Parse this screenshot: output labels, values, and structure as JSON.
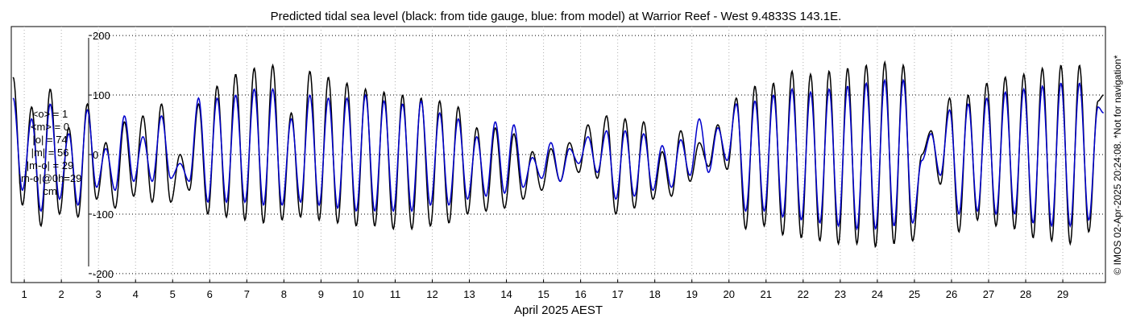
{
  "chart_data": {
    "type": "line",
    "title": "Predicted tidal sea level (black: from tide gauge, blue: from model) at Warrior Reef - West 9.4833S 143.1E.",
    "xlabel": "April 2025 AEST",
    "ylabel": "",
    "x_range": [
      0.65,
      30.15
    ],
    "ylim": [
      -215,
      215
    ],
    "x_ticks": [
      1,
      2,
      3,
      4,
      5,
      6,
      7,
      8,
      9,
      10,
      11,
      12,
      13,
      14,
      15,
      16,
      17,
      18,
      19,
      20,
      21,
      22,
      23,
      24,
      25,
      26,
      27,
      28,
      29
    ],
    "x_tick_labels": [
      "1",
      "2",
      "3",
      "4",
      "5",
      "6",
      "7",
      "8",
      "9",
      "10",
      "11",
      "12",
      "13",
      "14",
      "15",
      "16",
      "17",
      "18",
      "19",
      "20",
      "21",
      "22",
      "23",
      "24",
      "25",
      "26",
      "27",
      "28",
      "29"
    ],
    "y_ticks": [
      200,
      100,
      0,
      -100,
      -200
    ],
    "y_tick_labels": [
      "200",
      "100",
      "0",
      "-100",
      "-200"
    ],
    "grid": true,
    "series": [
      {
        "color": "#000000",
        "x": [
          0.7,
          0.95,
          1.2,
          1.45,
          1.7,
          1.95,
          2.2,
          2.45,
          2.7,
          2.95,
          3.2,
          3.45,
          3.7,
          3.95,
          4.2,
          4.45,
          4.7,
          4.95,
          5.2,
          5.45,
          5.7,
          5.95,
          6.2,
          6.45,
          6.7,
          6.95,
          7.2,
          7.45,
          7.7,
          7.95,
          8.2,
          8.45,
          8.7,
          8.95,
          9.2,
          9.45,
          9.7,
          9.95,
          10.2,
          10.45,
          10.7,
          10.95,
          11.2,
          11.45,
          11.7,
          11.95,
          12.2,
          12.45,
          12.7,
          12.95,
          13.2,
          13.45,
          13.7,
          13.95,
          14.2,
          14.45,
          14.7,
          14.95,
          15.2,
          15.45,
          15.7,
          15.95,
          16.2,
          16.45,
          16.7,
          16.95,
          17.2,
          17.45,
          17.7,
          17.95,
          18.2,
          18.45,
          18.7,
          18.95,
          19.2,
          19.45,
          19.7,
          19.95,
          20.2,
          20.45,
          20.7,
          20.95,
          21.2,
          21.45,
          21.7,
          21.95,
          22.2,
          22.45,
          22.7,
          22.95,
          23.2,
          23.45,
          23.7,
          23.95,
          24.2,
          24.45,
          24.7,
          24.95,
          25.2,
          25.45,
          25.7,
          25.95,
          26.2,
          26.45,
          26.7,
          26.95,
          27.2,
          27.45,
          27.7,
          27.95,
          28.2,
          28.45,
          28.7,
          28.95,
          29.2,
          29.45,
          29.7,
          29.95,
          30.1
        ],
        "y": [
          130,
          -85,
          80,
          -120,
          110,
          -100,
          45,
          -105,
          85,
          -75,
          20,
          -90,
          55,
          -70,
          65,
          -80,
          85,
          -80,
          0,
          -60,
          85,
          -100,
          115,
          -105,
          135,
          -110,
          145,
          -115,
          150,
          -110,
          70,
          -105,
          140,
          -110,
          130,
          -115,
          120,
          -120,
          110,
          -120,
          105,
          -125,
          100,
          -125,
          95,
          -120,
          90,
          -115,
          80,
          -100,
          45,
          -95,
          45,
          -90,
          35,
          -75,
          5,
          -60,
          10,
          -45,
          20,
          -30,
          50,
          -40,
          65,
          -100,
          60,
          -90,
          55,
          -75,
          5,
          -70,
          40,
          -45,
          20,
          -20,
          50,
          -25,
          95,
          -125,
          115,
          -120,
          120,
          -135,
          140,
          -140,
          135,
          -145,
          140,
          -150,
          145,
          -150,
          150,
          -155,
          155,
          -150,
          150,
          -145,
          0,
          40,
          -50,
          95,
          -130,
          100,
          -110,
          120,
          -120,
          130,
          -125,
          135,
          -140,
          145,
          -145,
          150,
          -150,
          150,
          -130,
          90,
          100
        ],
        "name": ""
      },
      {
        "color": "#0000cc",
        "x": [
          0.7,
          0.95,
          1.2,
          1.45,
          1.7,
          1.95,
          2.2,
          2.45,
          2.7,
          2.95,
          3.2,
          3.45,
          3.7,
          3.95,
          4.2,
          4.45,
          4.7,
          4.95,
          5.2,
          5.45,
          5.7,
          5.95,
          6.2,
          6.45,
          6.7,
          6.95,
          7.2,
          7.45,
          7.7,
          7.95,
          8.2,
          8.45,
          8.7,
          8.95,
          9.2,
          9.45,
          9.7,
          9.95,
          10.2,
          10.45,
          10.7,
          10.95,
          11.2,
          11.45,
          11.7,
          11.95,
          12.2,
          12.45,
          12.7,
          12.95,
          13.2,
          13.45,
          13.7,
          13.95,
          14.2,
          14.45,
          14.7,
          14.95,
          15.2,
          15.45,
          15.7,
          15.95,
          16.2,
          16.45,
          16.7,
          16.95,
          17.2,
          17.45,
          17.7,
          17.95,
          18.2,
          18.45,
          18.7,
          18.95,
          19.2,
          19.45,
          19.7,
          19.95,
          20.2,
          20.45,
          20.7,
          20.95,
          21.2,
          21.45,
          21.7,
          21.95,
          22.2,
          22.45,
          22.7,
          22.95,
          23.2,
          23.45,
          23.7,
          23.95,
          24.2,
          24.45,
          24.7,
          24.95,
          25.2,
          25.45,
          25.7,
          25.95,
          26.2,
          26.45,
          26.7,
          26.95,
          27.2,
          27.45,
          27.7,
          27.95,
          28.2,
          28.45,
          28.7,
          28.95,
          29.2,
          29.45,
          29.7,
          29.95,
          30.1
        ],
        "y": [
          95,
          -60,
          60,
          -95,
          85,
          -75,
          35,
          -85,
          75,
          -55,
          10,
          -60,
          65,
          -45,
          30,
          -45,
          65,
          -40,
          -15,
          -45,
          95,
          -80,
          95,
          -80,
          100,
          -80,
          110,
          -85,
          110,
          -85,
          60,
          -80,
          100,
          -85,
          95,
          -90,
          95,
          -95,
          100,
          -95,
          90,
          -95,
          85,
          -95,
          90,
          -85,
          70,
          -85,
          60,
          -75,
          30,
          -70,
          55,
          -65,
          50,
          -55,
          -5,
          -40,
          20,
          -45,
          10,
          -15,
          30,
          -30,
          40,
          -75,
          40,
          -70,
          35,
          -60,
          15,
          -55,
          25,
          -35,
          60,
          -30,
          45,
          -10,
          85,
          -95,
          90,
          -95,
          100,
          -105,
          110,
          -110,
          105,
          -115,
          110,
          -120,
          115,
          -125,
          120,
          -125,
          125,
          -120,
          125,
          -115,
          -10,
          35,
          -35,
          75,
          -100,
          85,
          -95,
          95,
          -100,
          105,
          -100,
          110,
          -115,
          115,
          -120,
          120,
          -120,
          120,
          -110,
          80,
          70
        ],
        "name": ""
      }
    ],
    "stats_lines": [
      "<o> = 1",
      "<m> = 0",
      "|o| = 74",
      "|m| = 56",
      "|m-o| = 29",
      "|m-o|@0h=29",
      "cm"
    ],
    "credit": "© IMOS 02-Apr-2025 20:24:08. *Not for navigation*"
  }
}
